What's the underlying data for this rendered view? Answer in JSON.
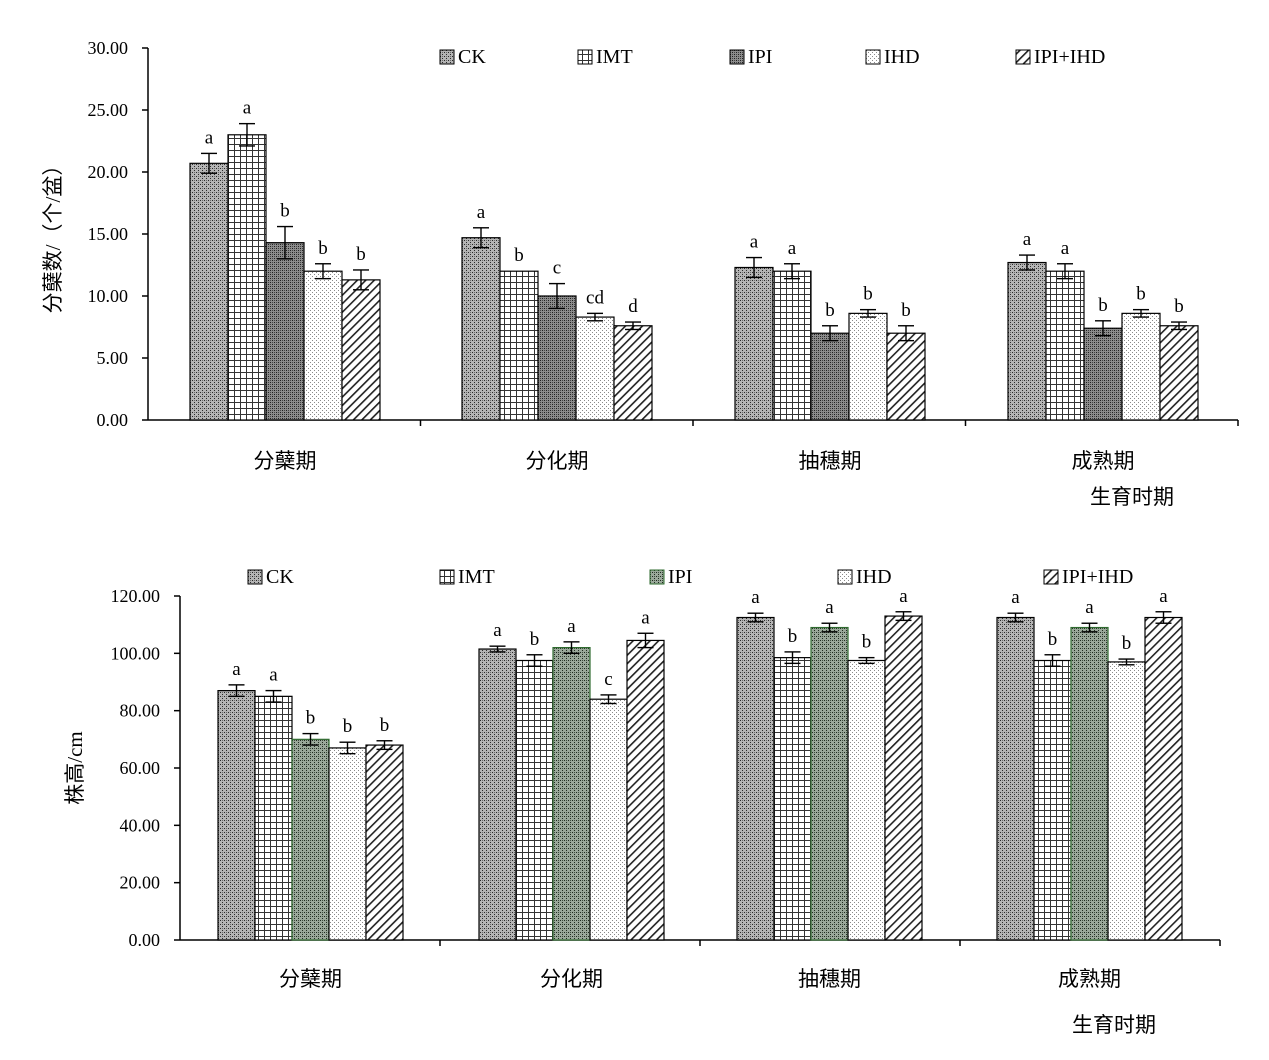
{
  "chart_data": [
    {
      "type": "bar",
      "title": "",
      "xlabel": "生育时期",
      "ylabel": "分蘖数/（个/盆）",
      "ylim": [
        0,
        30
      ],
      "yticks": [
        "0.00",
        "5.00",
        "10.00",
        "15.00",
        "20.00",
        "25.00",
        "30.00"
      ],
      "categories": [
        "分蘖期",
        "分化期",
        "抽穗期",
        "成熟期"
      ],
      "legend_position": "top",
      "series": [
        {
          "name": "CK",
          "values": [
            20.7,
            14.7,
            12.3,
            12.7
          ],
          "errors": [
            0.8,
            0.8,
            0.8,
            0.6
          ],
          "letters": [
            "a",
            "a",
            "a",
            "a"
          ],
          "color": "#8a8a8a"
        },
        {
          "name": "IMT",
          "values": [
            23.0,
            12.0,
            12.0,
            12.0
          ],
          "errors": [
            0.9,
            0.0,
            0.6,
            0.6
          ],
          "letters": [
            "a",
            "b",
            "a",
            "a"
          ],
          "color": "#e6e6e6"
        },
        {
          "name": "IPI",
          "values": [
            14.3,
            10.0,
            7.0,
            7.4
          ],
          "errors": [
            1.3,
            1.0,
            0.6,
            0.6
          ],
          "letters": [
            "b",
            "c",
            "b",
            "b"
          ],
          "color": "#6e6e6e"
        },
        {
          "name": "IHD",
          "values": [
            12.0,
            8.3,
            8.6,
            8.6
          ],
          "errors": [
            0.6,
            0.3,
            0.3,
            0.3
          ],
          "letters": [
            "b",
            "cd",
            "b",
            "b"
          ],
          "color": "#f2f2f2"
        },
        {
          "name": "IPI+IHD",
          "values": [
            11.3,
            7.6,
            7.0,
            7.6
          ],
          "errors": [
            0.8,
            0.3,
            0.6,
            0.3
          ],
          "letters": [
            "b",
            "d",
            "b",
            "b"
          ],
          "color": "#9a9a9a"
        }
      ]
    },
    {
      "type": "bar",
      "title": "",
      "xlabel": "生育时期",
      "ylabel": "株高/cm",
      "ylim": [
        0,
        120
      ],
      "yticks": [
        "0.00",
        "20.00",
        "40.00",
        "60.00",
        "80.00",
        "100.00",
        "120.00"
      ],
      "categories": [
        "分蘖期",
        "分化期",
        "抽穗期",
        "成熟期"
      ],
      "legend_position": "top",
      "series": [
        {
          "name": "CK",
          "values": [
            87.0,
            101.5,
            112.5,
            112.5
          ],
          "errors": [
            2.0,
            1.0,
            1.5,
            1.5
          ],
          "letters": [
            "a",
            "a",
            "a",
            "a"
          ],
          "color": "#8a8a8a"
        },
        {
          "name": "IMT",
          "values": [
            85.0,
            97.5,
            98.5,
            97.5
          ],
          "errors": [
            2.0,
            2.0,
            2.0,
            2.0
          ],
          "letters": [
            "a",
            "b",
            "b",
            "b"
          ],
          "color": "#e6e6e6"
        },
        {
          "name": "IPI",
          "values": [
            70.0,
            102.0,
            109.0,
            109.0
          ],
          "errors": [
            2.0,
            2.0,
            1.5,
            1.5
          ],
          "letters": [
            "b",
            "a",
            "a",
            "a"
          ],
          "color": "#7d8f7d"
        },
        {
          "name": "IHD",
          "values": [
            67.0,
            84.0,
            97.5,
            97.0
          ],
          "errors": [
            2.0,
            1.5,
            1.0,
            1.0
          ],
          "letters": [
            "b",
            "c",
            "b",
            "b"
          ],
          "color": "#f2f2f2"
        },
        {
          "name": "IPI+IHD",
          "values": [
            68.0,
            104.5,
            113.0,
            112.5
          ],
          "errors": [
            1.5,
            2.5,
            1.5,
            2.0
          ],
          "letters": [
            "b",
            "a",
            "a",
            "a"
          ],
          "color": "#9a9a9a"
        }
      ]
    }
  ]
}
